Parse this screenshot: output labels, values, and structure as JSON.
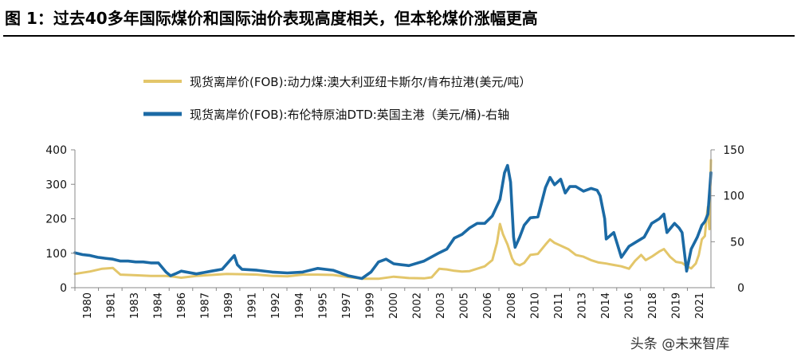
{
  "header": {
    "title": "图  1：过去40多年国际煤价和国际油价表现高度相关，但本轮煤价涨幅更高"
  },
  "watermark": {
    "text": "头条 @未来智库"
  },
  "chart_data": {
    "type": "line",
    "title": "",
    "xlabel": "",
    "ylabel": "",
    "x_tick_labels": [
      "1980",
      "1981",
      "1983",
      "1984",
      "1986",
      "1987",
      "1989",
      "1991",
      "1992",
      "1994",
      "1995",
      "1997",
      "1999",
      "2000",
      "2002",
      "2003",
      "2005",
      "2006",
      "2008",
      "2010",
      "2011",
      "2013",
      "2014",
      "2016",
      "2018",
      "2019",
      "2021"
    ],
    "x_range": [
      1980.0,
      2021.9
    ],
    "ylim_left": [
      0,
      400
    ],
    "yticks_left": [
      0,
      100,
      200,
      300,
      400
    ],
    "ylim_right": [
      0,
      150
    ],
    "yticks_right": [
      0,
      50,
      100,
      150
    ],
    "grid": false,
    "legend_position": "top-center",
    "series": [
      {
        "name": "现货离岸价(FOB):动力煤:澳大利亚纽卡斯尔/肯布拉港(美元/吨）",
        "axis": "left",
        "color": "#E3C66A",
        "x": [
          1980.0,
          1981.0,
          1981.8,
          1982.5,
          1983.0,
          1984.0,
          1985.0,
          1986.0,
          1986.5,
          1987.0,
          1988.0,
          1989.0,
          1990.0,
          1991.0,
          1992.0,
          1993.0,
          1994.0,
          1995.0,
          1996.0,
          1997.0,
          1998.0,
          1999.0,
          2000.0,
          2001.0,
          2002.0,
          2003.0,
          2003.5,
          2004.0,
          2004.5,
          2005.0,
          2005.5,
          2006.0,
          2006.5,
          2007.0,
          2007.5,
          2007.8,
          2008.0,
          2008.2,
          2008.5,
          2008.8,
          2009.0,
          2009.3,
          2009.6,
          2010.0,
          2010.5,
          2011.0,
          2011.3,
          2011.6,
          2012.0,
          2012.5,
          2013.0,
          2013.5,
          2014.0,
          2014.5,
          2015.0,
          2015.5,
          2016.0,
          2016.5,
          2016.9,
          2017.3,
          2017.6,
          2018.0,
          2018.5,
          2018.8,
          2019.2,
          2019.6,
          2020.0,
          2020.3,
          2020.6,
          2020.9,
          2021.1,
          2021.3,
          2021.5,
          2021.6,
          2021.7,
          2021.8,
          2021.9
        ],
        "y": [
          40,
          47,
          55,
          57,
          38,
          36,
          34,
          34,
          32,
          29,
          34,
          37,
          40,
          39,
          38,
          34,
          33,
          38,
          38,
          37,
          31,
          26,
          26,
          32,
          28,
          27,
          30,
          55,
          53,
          49,
          47,
          48,
          55,
          62,
          80,
          130,
          185,
          155,
          125,
          85,
          70,
          65,
          72,
          95,
          98,
          125,
          140,
          130,
          122,
          112,
          95,
          90,
          80,
          73,
          70,
          66,
          62,
          55,
          78,
          95,
          80,
          90,
          105,
          112,
          90,
          75,
          72,
          62,
          56,
          70,
          95,
          140,
          150,
          200,
          235,
          170,
          370
        ]
      },
      {
        "name": "现货离岸价(FOB):布伦特原油DTD:英国主港（美元/桶)-右轴",
        "axis": "right",
        "color": "#1B6AA5",
        "x": [
          1980.0,
          1980.5,
          1981.0,
          1981.5,
          1982.0,
          1982.5,
          1983.0,
          1983.5,
          1984.0,
          1984.5,
          1985.0,
          1985.5,
          1986.0,
          1986.3,
          1986.6,
          1987.0,
          1988.0,
          1989.0,
          1989.7,
          1990.5,
          1990.7,
          1991.0,
          1992.0,
          1993.0,
          1994.0,
          1995.0,
          1996.0,
          1997.0,
          1998.0,
          1998.9,
          1999.5,
          2000.0,
          2000.5,
          2001.0,
          2001.5,
          2002.0,
          2003.0,
          2004.0,
          2004.5,
          2005.0,
          2005.5,
          2006.0,
          2006.5,
          2007.0,
          2007.5,
          2008.0,
          2008.3,
          2008.5,
          2008.7,
          2008.9,
          2009.0,
          2009.3,
          2009.6,
          2010.0,
          2010.5,
          2011.0,
          2011.3,
          2011.6,
          2012.0,
          2012.3,
          2012.6,
          2013.0,
          2013.5,
          2014.0,
          2014.4,
          2014.6,
          2014.9,
          2015.0,
          2015.5,
          2016.0,
          2016.5,
          2017.0,
          2017.5,
          2018.0,
          2018.5,
          2018.8,
          2019.0,
          2019.5,
          2019.8,
          2020.0,
          2020.3,
          2020.6,
          2021.0,
          2021.3,
          2021.5,
          2021.7,
          2021.9
        ],
        "y": [
          38,
          36,
          35,
          33,
          32,
          31,
          29,
          29,
          28,
          28,
          27,
          27,
          17,
          13,
          15,
          18,
          15,
          18,
          20,
          35,
          25,
          20,
          19,
          17,
          16,
          17,
          21,
          19,
          13,
          10,
          17,
          28,
          31,
          26,
          25,
          24,
          29,
          38,
          42,
          54,
          58,
          65,
          70,
          70,
          78,
          96,
          125,
          133,
          115,
          55,
          44,
          55,
          68,
          76,
          77,
          109,
          120,
          112,
          118,
          103,
          110,
          110,
          105,
          108,
          106,
          100,
          75,
          53,
          60,
          33,
          45,
          50,
          55,
          70,
          75,
          80,
          60,
          70,
          65,
          60,
          18,
          42,
          55,
          68,
          72,
          80,
          125
        ]
      }
    ]
  }
}
